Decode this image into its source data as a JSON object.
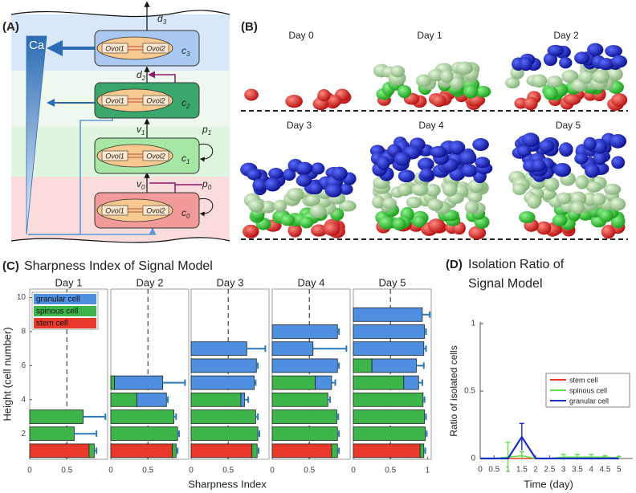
{
  "diagram": {
    "label": "(A)",
    "ca": "Ca",
    "cells": [
      {
        "name": {
          "base": "c",
          "sub": "3"
        },
        "gene1": "Ovol1",
        "gene2": "Ovol2"
      },
      {
        "name": {
          "base": "c",
          "sub": "2"
        },
        "gene1": "Ovol1",
        "gene2": "Ovol2"
      },
      {
        "name": {
          "base": "c",
          "sub": "1"
        },
        "gene1": "Ovol1",
        "gene2": "Ovol2"
      },
      {
        "name": {
          "base": "c",
          "sub": "0"
        },
        "gene1": "Ovol1",
        "gene2": "Ovol2"
      }
    ],
    "rates": [
      {
        "base": "d",
        "sub": "3"
      },
      {
        "base": "d",
        "sub": "2"
      },
      {
        "base": "v",
        "sub": "1"
      },
      {
        "base": "p",
        "sub": "1"
      },
      {
        "base": "v",
        "sub": "0"
      },
      {
        "base": "p",
        "sub": "0"
      }
    ]
  },
  "simulation": {
    "label": "(B)",
    "days": [
      "Day 0",
      "Day 1",
      "Day 2",
      "Day 3",
      "Day 4",
      "Day 5"
    ]
  },
  "chart_data": [
    {
      "type": "barh-stacked",
      "panel_label": "(C)",
      "suptitle": "Sharpness Index of Signal Model",
      "title": "Day 1",
      "xlabel": "Sharpness Index",
      "ylabel": "Height (cell number)",
      "y": [
        1,
        2,
        3,
        4,
        5,
        6,
        7,
        8,
        9,
        10
      ],
      "ylim": [
        0.5,
        10.5
      ],
      "yticks": [
        2,
        4,
        6,
        8,
        10
      ],
      "xlim": [
        0,
        1.05
      ],
      "xticks": [
        0,
        0.5
      ],
      "vline": 0.5,
      "legend": "upper left",
      "series": [
        {
          "name": "stem cell",
          "color": "#e8392a",
          "values": [
            0.8,
            null,
            null,
            null,
            null,
            null,
            null,
            null,
            null,
            null
          ]
        },
        {
          "name": "spinous cell",
          "color": "#3db54a",
          "values": [
            0.07,
            0.6,
            0.72,
            null,
            null,
            null,
            null,
            null,
            null,
            null
          ]
        },
        {
          "name": "granular cell",
          "color": "#4f8fe0",
          "values": [
            null,
            null,
            null,
            null,
            null,
            null,
            null,
            null,
            null,
            null
          ]
        }
      ],
      "errors": [
        0.03,
        0.3,
        0.3,
        null,
        null,
        null,
        null,
        null,
        null,
        null
      ]
    },
    {
      "type": "barh-stacked",
      "title": "Day 2",
      "y": [
        1,
        2,
        3,
        4,
        5,
        6,
        7,
        8,
        9,
        10
      ],
      "ylim": [
        0.5,
        10.5
      ],
      "xlim": [
        0,
        1.05
      ],
      "xticks": [
        0,
        0.5
      ],
      "vline": 0.5,
      "series": [
        {
          "color": "#e8392a",
          "values": [
            0.83,
            null,
            null,
            null,
            null,
            null,
            null,
            null,
            null,
            null
          ]
        },
        {
          "color": "#3db54a",
          "values": [
            0.05,
            0.9,
            0.85,
            0.35,
            0.05,
            null,
            null,
            null,
            null,
            null
          ]
        },
        {
          "color": "#4f8fe0",
          "values": [
            null,
            null,
            null,
            0.4,
            0.65,
            null,
            null,
            null,
            null,
            null
          ]
        }
      ],
      "errors": [
        0.02,
        0.02,
        0.03,
        0.02,
        0.3,
        null,
        null,
        null,
        null,
        null
      ]
    },
    {
      "type": "barh-stacked",
      "title": "Day 3",
      "y": [
        1,
        2,
        3,
        4,
        5,
        6,
        7,
        8,
        9,
        10
      ],
      "ylim": [
        0.5,
        10.5
      ],
      "xlim": [
        0,
        1.05
      ],
      "xticks": [
        0,
        0.5
      ],
      "vline": 0.5,
      "series": [
        {
          "color": "#e8392a",
          "values": [
            0.82,
            null,
            null,
            null,
            null,
            null,
            null,
            null,
            null,
            null
          ]
        },
        {
          "color": "#3db54a",
          "values": [
            0.07,
            0.9,
            0.87,
            0.67,
            null,
            null,
            null,
            null,
            null,
            null
          ]
        },
        {
          "color": "#4f8fe0",
          "values": [
            null,
            null,
            null,
            0.05,
            0.85,
            0.88,
            0.75,
            null,
            null,
            null
          ]
        }
      ],
      "errors": [
        0.02,
        0.02,
        0.03,
        0.05,
        0.02,
        0.02,
        0.25,
        null,
        null,
        null
      ]
    },
    {
      "type": "barh-stacked",
      "title": "Day 4",
      "y": [
        1,
        2,
        3,
        4,
        5,
        6,
        7,
        8,
        9,
        10
      ],
      "ylim": [
        0.5,
        10.5
      ],
      "xlim": [
        0,
        1.05
      ],
      "xticks": [
        0,
        0.5
      ],
      "vline": 0.5,
      "series": [
        {
          "color": "#e8392a",
          "values": [
            0.8,
            null,
            null,
            null,
            null,
            null,
            null,
            null,
            null,
            null
          ]
        },
        {
          "color": "#3db54a",
          "values": [
            0.08,
            0.88,
            0.87,
            0.75,
            0.58,
            null,
            null,
            null,
            null,
            null
          ]
        },
        {
          "color": "#4f8fe0",
          "values": [
            null,
            null,
            null,
            null,
            0.22,
            0.88,
            0.55,
            0.88,
            null,
            null
          ]
        }
      ],
      "errors": [
        0.02,
        0.02,
        0.02,
        0.03,
        0.05,
        0.02,
        0.45,
        0.02,
        null,
        null
      ]
    },
    {
      "type": "barh-stacked",
      "title": "Day 5",
      "y": [
        1,
        2,
        3,
        4,
        5,
        6,
        7,
        8,
        9,
        10
      ],
      "ylim": [
        0.5,
        10.5
      ],
      "xlim": [
        0,
        1.05
      ],
      "xticks": [
        0,
        0.5,
        1
      ],
      "vline": 0.5,
      "series": [
        {
          "color": "#e8392a",
          "values": [
            0.9,
            null,
            null,
            null,
            null,
            null,
            null,
            null,
            null,
            null
          ]
        },
        {
          "color": "#3db54a",
          "values": [
            0.05,
            0.97,
            0.96,
            0.94,
            0.68,
            0.25,
            null,
            null,
            null,
            null
          ]
        },
        {
          "color": "#4f8fe0",
          "values": [
            null,
            null,
            null,
            null,
            0.2,
            0.6,
            0.95,
            0.96,
            0.93,
            null
          ]
        }
      ],
      "errors": [
        0.02,
        0.02,
        0.02,
        0.02,
        0.05,
        0.1,
        0.03,
        0.02,
        0.1,
        null
      ]
    },
    {
      "type": "line",
      "panel_label": "(D)",
      "title": [
        "Isolation Ratio of",
        "Signal Model"
      ],
      "xlabel": "Time (day)",
      "ylabel": "Ratio of isolated cells",
      "x": [
        0,
        0.5,
        1,
        1.5,
        2,
        2.5,
        3,
        3.5,
        4,
        4.5,
        5
      ],
      "xlim": [
        0,
        5.5
      ],
      "ylim": [
        0,
        1
      ],
      "xticks": [
        0,
        0.5,
        1,
        1.5,
        2,
        2.5,
        3,
        3.5,
        4,
        4.5,
        5
      ],
      "yticks": [
        0,
        0.5,
        1
      ],
      "legend": "upper right",
      "series": [
        {
          "name": "stem cell",
          "color": "#e8392a",
          "values": [
            0,
            0,
            0,
            0,
            0,
            0,
            0,
            0,
            0,
            0,
            0
          ],
          "errors": [
            0,
            0,
            0,
            0,
            0,
            0,
            0,
            0,
            0,
            0,
            0
          ]
        },
        {
          "name": "spinous cell",
          "color": "#5ee04a",
          "values": [
            0,
            0,
            0.01,
            0.02,
            0,
            0,
            0.01,
            0.01,
            0.01,
            0.01,
            0.005
          ],
          "errors": [
            0,
            0,
            0.11,
            0.03,
            0,
            0,
            0.02,
            0.02,
            0.02,
            0.01,
            0.01
          ]
        },
        {
          "name": "granular cell",
          "color": "#1a2fc4",
          "values": [
            0,
            0,
            0,
            0.16,
            0,
            0,
            0,
            0,
            0,
            0,
            0
          ],
          "errors": [
            0,
            0,
            0,
            0.1,
            0,
            0,
            0,
            0,
            0,
            0,
            0
          ]
        }
      ]
    }
  ]
}
